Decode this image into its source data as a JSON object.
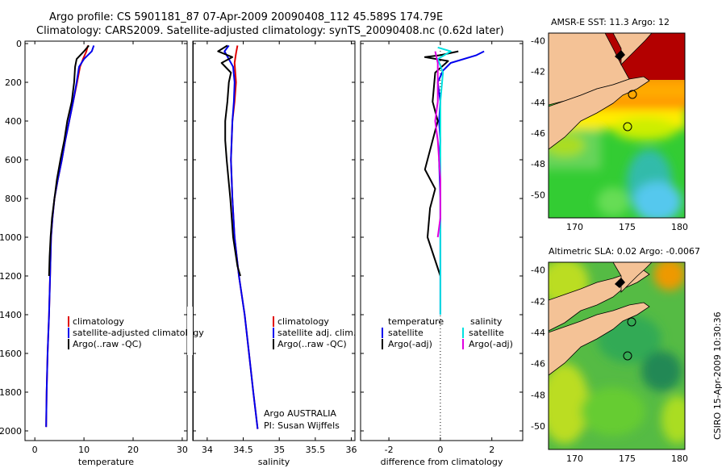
{
  "header": {
    "title": "Argo profile: CS 5901181_87 07-Apr-2009 20090408_112 45.589S 174.79E",
    "subtitle": "Climatology: CARS2009. Satellite-adjusted climatology: synTS_20090408.nc (0.62d later)"
  },
  "colors": {
    "climatology": "#e00000",
    "satellite": "#0000ee",
    "argo": "#000000",
    "sal_satellite": "#00e0e0",
    "sal_argo": "#e000e0"
  },
  "chart_data": [
    {
      "type": "line",
      "panel": "temperature",
      "xlabel": "temperature",
      "xlim": [
        -2,
        31
      ],
      "ylim": [
        0,
        2050
      ],
      "y_reversed": true,
      "xticks": [
        "0",
        "10",
        "20",
        "30"
      ],
      "yticks": [
        "0",
        "200",
        "400",
        "600",
        "800",
        "1000",
        "1200",
        "1400",
        "1600",
        "1800",
        "2000"
      ],
      "series": [
        {
          "name": "climatology",
          "color": "#e00000",
          "points": [
            [
              10.8,
              10
            ],
            [
              10.5,
              40
            ],
            [
              9.8,
              80
            ],
            [
              9.2,
              120
            ],
            [
              8.6,
              200
            ],
            [
              7.8,
              300
            ],
            [
              7.0,
              400
            ],
            [
              6.2,
              500
            ],
            [
              5.5,
              600
            ],
            [
              4.7,
              700
            ],
            [
              4.0,
              800
            ],
            [
              3.6,
              900
            ],
            [
              3.3,
              1000
            ],
            [
              3.1,
              1200
            ],
            [
              2.9,
              1400
            ],
            [
              2.6,
              1600
            ],
            [
              2.4,
              1800
            ],
            [
              2.3,
              1980
            ]
          ]
        },
        {
          "name": "satellite-adjusted climatology",
          "color": "#0000ee",
          "points": [
            [
              12.0,
              10
            ],
            [
              11.6,
              40
            ],
            [
              10.0,
              80
            ],
            [
              9.0,
              120
            ],
            [
              8.5,
              200
            ],
            [
              7.8,
              300
            ],
            [
              7.0,
              400
            ],
            [
              6.2,
              500
            ],
            [
              5.5,
              600
            ],
            [
              4.7,
              700
            ],
            [
              4.0,
              800
            ],
            [
              3.6,
              900
            ],
            [
              3.3,
              1000
            ],
            [
              3.1,
              1200
            ],
            [
              2.9,
              1400
            ],
            [
              2.6,
              1600
            ],
            [
              2.4,
              1800
            ],
            [
              2.3,
              1980
            ]
          ]
        },
        {
          "name": "Argo(..raw -QC)",
          "color": "#000000",
          "points": [
            [
              11.0,
              10
            ],
            [
              10.0,
              40
            ],
            [
              8.5,
              80
            ],
            [
              8.2,
              120
            ],
            [
              8.0,
              200
            ],
            [
              7.5,
              300
            ],
            [
              6.6,
              400
            ],
            [
              6.0,
              500
            ],
            [
              5.2,
              600
            ],
            [
              4.5,
              700
            ],
            [
              4.0,
              800
            ],
            [
              3.5,
              900
            ],
            [
              3.2,
              1000
            ],
            [
              3.0,
              1100
            ],
            [
              2.9,
              1200
            ]
          ]
        }
      ],
      "legend": [
        "climatology",
        "satellite-adjusted climatology",
        "Argo(..raw -QC)"
      ]
    },
    {
      "type": "line",
      "panel": "salinity",
      "xlabel": "salinity",
      "xlim": [
        33.8,
        36.05
      ],
      "ylim": [
        0,
        2050
      ],
      "y_reversed": true,
      "xticks": [
        "34",
        "34.5",
        "35",
        "35.5",
        "36"
      ],
      "series": [
        {
          "name": "climatology",
          "color": "#e00000",
          "points": [
            [
              34.42,
              10
            ],
            [
              34.4,
              50
            ],
            [
              34.38,
              100
            ],
            [
              34.4,
              200
            ],
            [
              34.38,
              300
            ],
            [
              34.35,
              400
            ],
            [
              34.34,
              500
            ],
            [
              34.33,
              600
            ],
            [
              34.35,
              800
            ],
            [
              34.38,
              1000
            ],
            [
              34.44,
              1200
            ],
            [
              34.52,
              1400
            ],
            [
              34.58,
              1600
            ],
            [
              34.64,
              1800
            ],
            [
              34.7,
              1990
            ]
          ]
        },
        {
          "name": "satellite adj. clim.",
          "color": "#0000ee",
          "points": [
            [
              34.3,
              10
            ],
            [
              34.24,
              40
            ],
            [
              34.3,
              80
            ],
            [
              34.36,
              120
            ],
            [
              34.38,
              200
            ],
            [
              34.37,
              300
            ],
            [
              34.35,
              400
            ],
            [
              34.34,
              500
            ],
            [
              34.33,
              600
            ],
            [
              34.35,
              800
            ],
            [
              34.38,
              1000
            ],
            [
              34.44,
              1200
            ],
            [
              34.52,
              1400
            ],
            [
              34.58,
              1600
            ],
            [
              34.64,
              1800
            ],
            [
              34.7,
              1990
            ]
          ]
        },
        {
          "name": "Argo(..raw -QC)",
          "color": "#000000",
          "points": [
            [
              34.28,
              10
            ],
            [
              34.15,
              40
            ],
            [
              34.35,
              70
            ],
            [
              34.2,
              100
            ],
            [
              34.33,
              150
            ],
            [
              34.3,
              200
            ],
            [
              34.28,
              300
            ],
            [
              34.25,
              400
            ],
            [
              34.25,
              500
            ],
            [
              34.27,
              600
            ],
            [
              34.32,
              800
            ],
            [
              34.36,
              1000
            ],
            [
              34.42,
              1150
            ],
            [
              34.46,
              1200
            ]
          ]
        }
      ],
      "legend": [
        "climatology",
        "satellite adj. clim.",
        "Argo(..raw -QC)"
      ],
      "annotation": [
        "Argo AUSTRALIA",
        "PI: Susan Wijffels"
      ]
    },
    {
      "type": "line",
      "panel": "difference",
      "xlabel": "difference from climatology",
      "xlim": [
        -3.1,
        3.2
      ],
      "ylim": [
        0,
        2050
      ],
      "y_reversed": true,
      "xticks": [
        "-2",
        "0",
        "2"
      ],
      "series": [
        {
          "name": "temperature satellite",
          "color": "#0000ee",
          "points": [
            [
              1.7,
              40
            ],
            [
              1.4,
              60
            ],
            [
              0.4,
              100
            ],
            [
              0.1,
              140
            ],
            [
              -0.1,
              200
            ],
            [
              0.0,
              300
            ],
            [
              -0.05,
              400
            ],
            [
              0.0,
              500
            ],
            [
              -0.05,
              600
            ],
            [
              0.0,
              800
            ],
            [
              0.0,
              1000
            ],
            [
              0.0,
              1400
            ]
          ]
        },
        {
          "name": "temperature Argo(-adj)",
          "color": "#000000",
          "points": [
            [
              0.7,
              40
            ],
            [
              0.0,
              60
            ],
            [
              -0.6,
              70
            ],
            [
              0.3,
              90
            ],
            [
              -0.2,
              150
            ],
            [
              -0.3,
              300
            ],
            [
              -0.1,
              400
            ],
            [
              -0.3,
              500
            ],
            [
              -0.6,
              650
            ],
            [
              -0.2,
              750
            ],
            [
              -0.4,
              850
            ],
            [
              -0.5,
              1000
            ],
            [
              0.0,
              1200
            ]
          ]
        },
        {
          "name": "salinity satellite",
          "color": "#00e0e0",
          "points": [
            [
              -0.1,
              20
            ],
            [
              0.4,
              40
            ],
            [
              -0.1,
              80
            ],
            [
              0.1,
              150
            ],
            [
              0.0,
              300
            ],
            [
              0.0,
              600
            ],
            [
              0.0,
              1000
            ],
            [
              0.0,
              1400
            ]
          ]
        },
        {
          "name": "salinity Argo(-adj)",
          "color": "#e000e0",
          "points": [
            [
              -0.2,
              40
            ],
            [
              -0.1,
              100
            ],
            [
              -0.1,
              300
            ],
            [
              -0.2,
              400
            ],
            [
              -0.1,
              500
            ],
            [
              0.0,
              700
            ],
            [
              0.0,
              900
            ],
            [
              -0.1,
              1000
            ]
          ]
        }
      ],
      "legend_titles": [
        "temperature",
        "salinity"
      ],
      "legend": [
        "satellite",
        "Argo(-adj)",
        "satellite",
        "Argo(-adj)"
      ]
    },
    {
      "type": "heatmap",
      "panel": "sst-map",
      "title": "AMSR-E SST: 11.3 Argo: 12",
      "xticks": [
        "170",
        "175",
        "180"
      ],
      "yticks": [
        "-40",
        "-42",
        "-44",
        "-46",
        "-48",
        "-50"
      ],
      "xlim": [
        167.5,
        180.5
      ],
      "ylim": [
        -51.5,
        -39.5
      ]
    },
    {
      "type": "heatmap",
      "panel": "sla-map",
      "title": "Altimetric SLA: 0.02 Argo: -0.0067",
      "xticks": [
        "170",
        "175",
        "180"
      ],
      "yticks": [
        "-40",
        "-42",
        "-44",
        "-46",
        "-48",
        "-50"
      ],
      "xlim": [
        167.5,
        180.5
      ],
      "ylim": [
        -51.5,
        -39.5
      ]
    }
  ],
  "footer": {
    "credit": "CSIRO 15-Apr-2009 10:30:36"
  }
}
